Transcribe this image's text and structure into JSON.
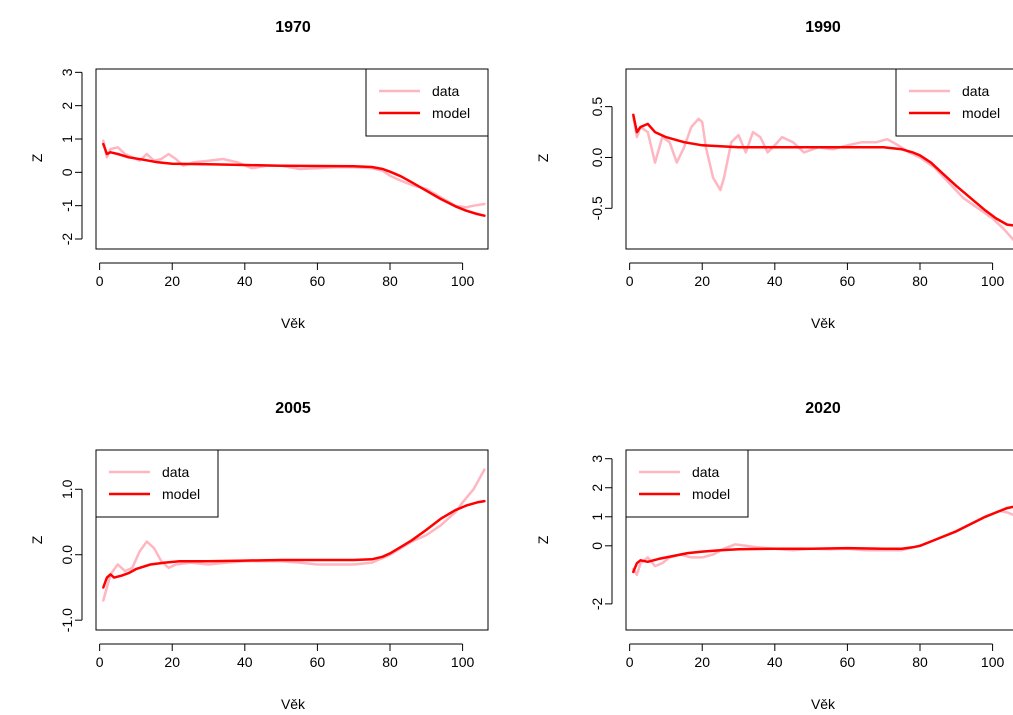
{
  "colors": {
    "data": "#ffb6c1",
    "model": "#ff0000",
    "axis": "#000000",
    "background": "#ffffff"
  },
  "chart_data": [
    {
      "type": "line",
      "title": "1970",
      "xlabel": "Věk",
      "ylabel": "Z",
      "xlim": [
        -1,
        107
      ],
      "ylim": [
        -2.3,
        3.1
      ],
      "xticks": [
        0,
        20,
        40,
        60,
        80,
        100
      ],
      "yticks": [
        -2,
        -1,
        0,
        1,
        2,
        3
      ],
      "yticklabels": [
        "-2",
        "-1",
        "0",
        "1",
        "2",
        "3"
      ],
      "legend": {
        "position": "top-right",
        "entries": [
          "data",
          "model"
        ]
      },
      "series": [
        {
          "name": "data",
          "color": "#ffb6c1",
          "x": [
            1,
            2,
            3,
            5,
            7,
            9,
            11,
            13,
            15,
            17,
            19,
            21,
            23,
            26,
            30,
            34,
            38,
            42,
            46,
            50,
            55,
            60,
            65,
            70,
            75,
            78,
            80,
            83,
            86,
            90,
            94,
            98,
            101,
            103,
            106
          ],
          "y": [
            0.95,
            0.45,
            0.7,
            0.75,
            0.55,
            0.45,
            0.35,
            0.55,
            0.35,
            0.4,
            0.55,
            0.4,
            0.2,
            0.3,
            0.35,
            0.4,
            0.3,
            0.12,
            0.2,
            0.2,
            0.1,
            0.12,
            0.15,
            0.15,
            0.12,
            0.05,
            -0.1,
            -0.25,
            -0.38,
            -0.5,
            -0.75,
            -1.0,
            -1.05,
            -1.0,
            -0.95
          ]
        },
        {
          "name": "model",
          "color": "#ff0000",
          "x": [
            1,
            2,
            3,
            5,
            8,
            12,
            16,
            20,
            30,
            40,
            50,
            60,
            70,
            75,
            78,
            80,
            83,
            86,
            90,
            94,
            98,
            101,
            104,
            106
          ],
          "y": [
            0.85,
            0.55,
            0.6,
            0.55,
            0.45,
            0.38,
            0.3,
            0.26,
            0.24,
            0.22,
            0.2,
            0.19,
            0.18,
            0.16,
            0.1,
            0.02,
            -0.12,
            -0.3,
            -0.55,
            -0.8,
            -1.02,
            -1.15,
            -1.25,
            -1.3
          ]
        }
      ]
    },
    {
      "type": "line",
      "title": "1990",
      "xlabel": "Věk",
      "ylabel": "Z",
      "xlim": [
        -1,
        107
      ],
      "ylim": [
        -0.9,
        0.87
      ],
      "xticks": [
        0,
        20,
        40,
        60,
        80,
        100
      ],
      "yticks": [
        -0.5,
        0.0,
        0.5
      ],
      "yticklabels": [
        "-0.5",
        "0.0",
        "0.5"
      ],
      "legend": {
        "position": "top-right",
        "entries": [
          "data",
          "model"
        ]
      },
      "series": [
        {
          "name": "data",
          "color": "#ffb6c1",
          "x": [
            1,
            2,
            3,
            5,
            7,
            9,
            11,
            13,
            15,
            17,
            19,
            20,
            21,
            23,
            25,
            26,
            28,
            30,
            32,
            34,
            36,
            38,
            40,
            42,
            45,
            48,
            52,
            56,
            60,
            64,
            68,
            71,
            74,
            77,
            80,
            84,
            88,
            92,
            96,
            100,
            103,
            106
          ],
          "y": [
            0.4,
            0.2,
            0.3,
            0.25,
            -0.05,
            0.2,
            0.15,
            -0.05,
            0.1,
            0.3,
            0.38,
            0.35,
            0.1,
            -0.2,
            -0.32,
            -0.2,
            0.15,
            0.22,
            0.05,
            0.25,
            0.2,
            0.05,
            0.12,
            0.2,
            0.15,
            0.05,
            0.1,
            0.08,
            0.12,
            0.15,
            0.15,
            0.18,
            0.12,
            0.05,
            0.0,
            -0.1,
            -0.25,
            -0.4,
            -0.5,
            -0.6,
            -0.7,
            -0.82
          ]
        },
        {
          "name": "model",
          "color": "#ff0000",
          "x": [
            1,
            2,
            3,
            5,
            7,
            10,
            15,
            20,
            25,
            30,
            40,
            50,
            60,
            70,
            75,
            78,
            80,
            83,
            86,
            90,
            94,
            98,
            101,
            104,
            106
          ],
          "y": [
            0.42,
            0.25,
            0.3,
            0.33,
            0.25,
            0.2,
            0.15,
            0.12,
            0.11,
            0.1,
            0.1,
            0.1,
            0.1,
            0.1,
            0.08,
            0.05,
            0.02,
            -0.05,
            -0.15,
            -0.28,
            -0.4,
            -0.52,
            -0.6,
            -0.66,
            -0.67
          ]
        }
      ]
    },
    {
      "type": "line",
      "title": "2005",
      "xlabel": "Věk",
      "ylabel": "Z",
      "xlim": [
        -1,
        107
      ],
      "ylim": [
        -1.15,
        1.6
      ],
      "xticks": [
        0,
        20,
        40,
        60,
        80,
        100
      ],
      "yticks": [
        -1.0,
        0.0,
        1.0
      ],
      "yticklabels": [
        "-1.0",
        "0.0",
        "1.0"
      ],
      "legend": {
        "position": "top-left",
        "entries": [
          "data",
          "model"
        ]
      },
      "series": [
        {
          "name": "data",
          "color": "#ffb6c1",
          "x": [
            1,
            2,
            3,
            5,
            7,
            9,
            11,
            13,
            15,
            17,
            19,
            21,
            25,
            30,
            35,
            40,
            45,
            50,
            55,
            60,
            65,
            70,
            75,
            78,
            80,
            83,
            86,
            90,
            94,
            98,
            100,
            103,
            106
          ],
          "y": [
            -0.7,
            -0.5,
            -0.3,
            -0.15,
            -0.25,
            -0.2,
            0.05,
            0.2,
            0.1,
            -0.1,
            -0.2,
            -0.15,
            -0.12,
            -0.15,
            -0.12,
            -0.1,
            -0.1,
            -0.1,
            -0.12,
            -0.15,
            -0.15,
            -0.15,
            -0.12,
            -0.05,
            0.0,
            0.1,
            0.2,
            0.3,
            0.45,
            0.65,
            0.8,
            1.0,
            1.3
          ]
        },
        {
          "name": "model",
          "color": "#ff0000",
          "x": [
            1,
            2,
            3,
            4,
            6,
            8,
            10,
            14,
            18,
            22,
            30,
            40,
            50,
            60,
            70,
            75,
            78,
            80,
            83,
            86,
            90,
            94,
            98,
            101,
            104,
            106
          ],
          "y": [
            -0.5,
            -0.35,
            -0.3,
            -0.35,
            -0.32,
            -0.28,
            -0.22,
            -0.15,
            -0.12,
            -0.1,
            -0.1,
            -0.09,
            -0.08,
            -0.08,
            -0.08,
            -0.07,
            -0.03,
            0.02,
            0.12,
            0.22,
            0.38,
            0.55,
            0.68,
            0.75,
            0.8,
            0.82
          ]
        }
      ]
    },
    {
      "type": "line",
      "title": "2020",
      "xlabel": "Věk",
      "ylabel": "Z",
      "xlim": [
        -1,
        107
      ],
      "ylim": [
        -2.9,
        3.3
      ],
      "xticks": [
        0,
        20,
        40,
        60,
        80,
        100
      ],
      "yticks": [
        -2,
        0,
        1,
        2,
        3
      ],
      "yticklabels": [
        "-2",
        "0",
        "1",
        "2",
        "3"
      ],
      "legend": {
        "position": "top-left",
        "entries": [
          "data",
          "model"
        ]
      },
      "series": [
        {
          "name": "data",
          "color": "#ffb6c1",
          "x": [
            1,
            2,
            3,
            5,
            7,
            9,
            11,
            14,
            17,
            20,
            23,
            26,
            29,
            32,
            35,
            40,
            45,
            50,
            55,
            60,
            65,
            70,
            75,
            78,
            80,
            83,
            86,
            90,
            94,
            98,
            102,
            104,
            106
          ],
          "y": [
            -0.8,
            -1.0,
            -0.6,
            -0.4,
            -0.7,
            -0.6,
            -0.4,
            -0.3,
            -0.4,
            -0.4,
            -0.3,
            -0.1,
            0.05,
            0.0,
            -0.05,
            -0.1,
            -0.15,
            -0.1,
            -0.12,
            -0.1,
            -0.15,
            -0.15,
            -0.15,
            -0.05,
            0.0,
            0.15,
            0.3,
            0.5,
            0.75,
            1.0,
            1.2,
            1.15,
            1.05
          ]
        },
        {
          "name": "model",
          "color": "#ff0000",
          "x": [
            1,
            2,
            3,
            5,
            8,
            12,
            16,
            20,
            25,
            30,
            40,
            50,
            60,
            70,
            75,
            78,
            80,
            83,
            86,
            90,
            94,
            98,
            101,
            104,
            106
          ],
          "y": [
            -0.9,
            -0.6,
            -0.5,
            -0.55,
            -0.45,
            -0.35,
            -0.25,
            -0.2,
            -0.15,
            -0.12,
            -0.1,
            -0.1,
            -0.08,
            -0.1,
            -0.1,
            -0.05,
            0.0,
            0.15,
            0.3,
            0.5,
            0.75,
            1.0,
            1.15,
            1.3,
            1.35
          ]
        }
      ]
    }
  ]
}
